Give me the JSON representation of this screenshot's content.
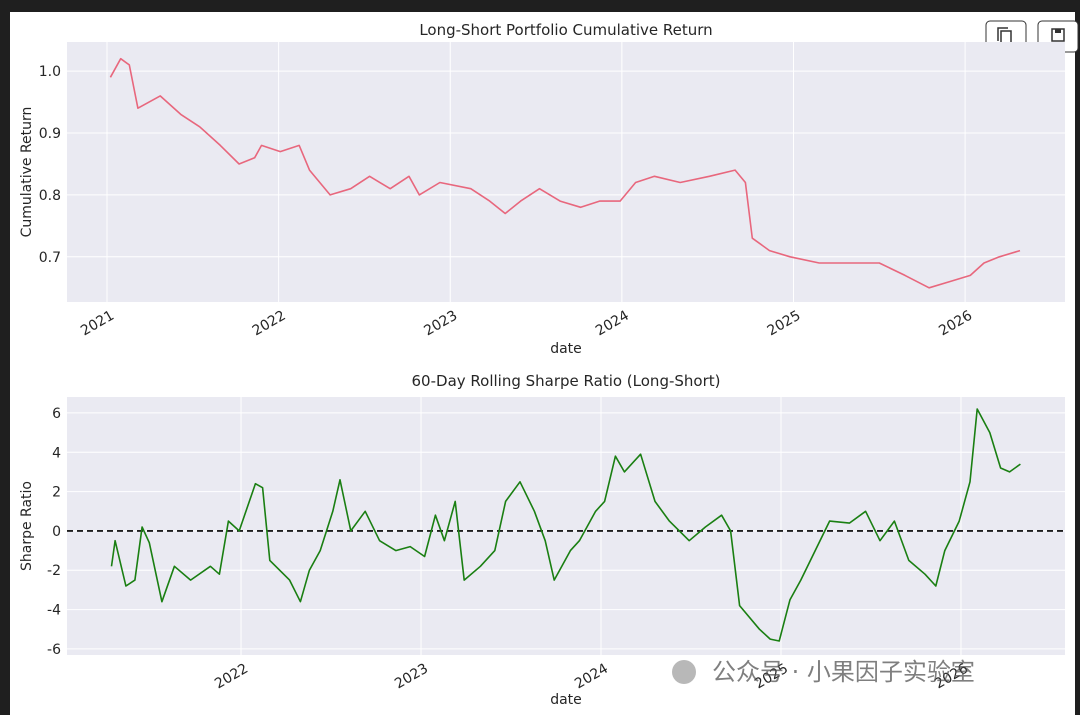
{
  "chart_data": [
    {
      "type": "line",
      "title": "Long-Short Portfolio Cumulative Return",
      "x_label": "date",
      "y_label": "Cumulative Return",
      "x": [
        2021.02,
        2021.08,
        2021.13,
        2021.18,
        2021.31,
        2021.43,
        2021.54,
        2021.66,
        2021.77,
        2021.86,
        2021.9,
        2022.01,
        2022.12,
        2022.18,
        2022.3,
        2022.42,
        2022.53,
        2022.65,
        2022.76,
        2022.82,
        2022.94,
        2023.12,
        2023.23,
        2023.32,
        2023.41,
        2023.52,
        2023.64,
        2023.76,
        2023.87,
        2023.99,
        2024.08,
        2024.19,
        2024.34,
        2024.51,
        2024.66,
        2024.72,
        2024.76,
        2024.86,
        2024.98,
        2025.15,
        2025.33,
        2025.5,
        2025.65,
        2025.79,
        2025.91,
        2026.03,
        2026.11,
        2026.2,
        2026.32
      ],
      "series": [
        {
          "color": "#e8677d",
          "values": [
            0.99,
            1.02,
            1.01,
            0.94,
            0.96,
            0.93,
            0.91,
            0.88,
            0.85,
            0.86,
            0.88,
            0.87,
            0.88,
            0.84,
            0.8,
            0.81,
            0.83,
            0.81,
            0.83,
            0.8,
            0.82,
            0.81,
            0.79,
            0.77,
            0.79,
            0.81,
            0.79,
            0.78,
            0.79,
            0.79,
            0.82,
            0.83,
            0.82,
            0.83,
            0.84,
            0.82,
            0.73,
            0.71,
            0.7,
            0.69,
            0.69,
            0.69,
            0.67,
            0.65,
            0.66,
            0.67,
            0.69,
            0.7,
            0.71
          ]
        }
      ],
      "xlim": [
        2020.767,
        2026.582
      ],
      "xticks": [
        2021,
        2022,
        2023,
        2024,
        2025,
        2026
      ],
      "ylim": [
        0.627,
        1.047
      ],
      "yticks": [
        0.7,
        0.8,
        0.9,
        {
          "value": 1.0,
          "label": "1.0"
        }
      ],
      "grid": true
    },
    {
      "type": "line",
      "title": "60-Day Rolling Sharpe Ratio (Long-Short)",
      "x_label": "date",
      "y_label": "Sharpe Ratio",
      "x": [
        2021.28,
        2021.3,
        2021.36,
        2021.41,
        2021.45,
        2021.49,
        2021.56,
        2021.63,
        2021.72,
        2021.83,
        2021.88,
        2021.93,
        2021.99,
        2022.08,
        2022.12,
        2022.16,
        2022.27,
        2022.33,
        2022.38,
        2022.44,
        2022.51,
        2022.55,
        2022.61,
        2022.69,
        2022.77,
        2022.86,
        2022.94,
        2023.02,
        2023.08,
        2023.13,
        2023.19,
        2023.24,
        2023.33,
        2023.41,
        2023.47,
        2023.55,
        2023.63,
        2023.69,
        2023.74,
        2023.83,
        2023.88,
        2023.97,
        2024.02,
        2024.08,
        2024.13,
        2024.22,
        2024.3,
        2024.38,
        2024.49,
        2024.58,
        2024.67,
        2024.72,
        2024.77,
        2024.88,
        2024.94,
        2024.99,
        2025.05,
        2025.11,
        2025.19,
        2025.27,
        2025.38,
        2025.47,
        2025.55,
        2025.63,
        2025.71,
        2025.8,
        2025.86,
        2025.91,
        2025.99,
        2026.05,
        2026.09,
        2026.16,
        2026.22,
        2026.27,
        2026.33
      ],
      "series": [
        {
          "color": "#1a7f12",
          "values": [
            -1.8,
            -0.5,
            -2.8,
            -2.5,
            0.2,
            -0.6,
            -3.6,
            -1.8,
            -2.5,
            -1.8,
            -2.2,
            0.5,
            0.0,
            2.4,
            2.2,
            -1.5,
            -2.5,
            -3.6,
            -2.0,
            -1.0,
            1.0,
            2.6,
            0.0,
            1.0,
            -0.5,
            -1.0,
            -0.8,
            -1.3,
            0.8,
            -0.5,
            1.5,
            -2.5,
            -1.8,
            -1.0,
            1.5,
            2.5,
            1.0,
            -0.5,
            -2.5,
            -1.0,
            -0.5,
            1.0,
            1.5,
            3.8,
            3.0,
            3.9,
            1.5,
            0.5,
            -0.5,
            0.2,
            0.8,
            0.0,
            -3.8,
            -5.0,
            -5.5,
            -5.6,
            -3.5,
            -2.5,
            -1.0,
            0.5,
            0.4,
            1.0,
            -0.5,
            0.5,
            -1.5,
            -2.2,
            -2.8,
            -1.0,
            0.5,
            2.5,
            6.2,
            5.0,
            3.2,
            3.0,
            3.4
          ]
        }
      ],
      "reference_line": {
        "value": 0,
        "color": "#000000",
        "style": "dashed"
      },
      "xlim": [
        2021.033,
        2026.578
      ],
      "xticks": [
        2022,
        2023,
        2024,
        2025,
        2026
      ],
      "ylim": [
        -6.31,
        6.81
      ],
      "yticks": [
        -6,
        -4,
        -2,
        0,
        2,
        4,
        6
      ],
      "grid": true
    }
  ],
  "watermark": "公众号 · 小果因子实验室"
}
